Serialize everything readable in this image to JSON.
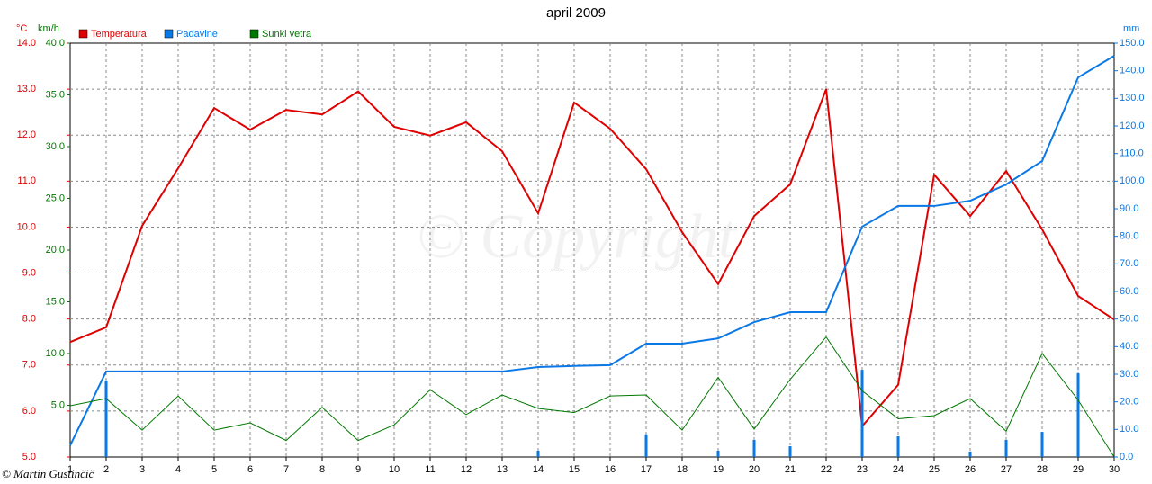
{
  "chart_data": {
    "type": "line",
    "title": "april 2009",
    "watermark": "© Copyright",
    "footer": "© Martin Gustinčič",
    "ylabel": "°C",
    "y3label": "km/h",
    "y2label": "mm",
    "grid": true,
    "x": [
      1,
      2,
      3,
      4,
      5,
      6,
      7,
      8,
      9,
      10,
      11,
      12,
      13,
      14,
      15,
      16,
      17,
      18,
      19,
      20,
      21,
      22,
      23,
      24,
      25,
      26,
      27,
      28,
      29,
      30
    ],
    "xlim": [
      1,
      30
    ],
    "ylim": [
      5,
      14
    ],
    "yticks": [
      {
        "value": 5,
        "label": "5.0"
      },
      {
        "value": 6,
        "label": "6.0"
      },
      {
        "value": 7,
        "label": "7.0"
      },
      {
        "value": 8,
        "label": "8.0"
      },
      {
        "value": 9,
        "label": "9.0"
      },
      {
        "value": 10,
        "label": "10.0"
      },
      {
        "value": 11,
        "label": "11.0"
      },
      {
        "value": 12,
        "label": "12.0"
      },
      {
        "value": 13,
        "label": "13.0"
      },
      {
        "value": 14,
        "label": "14.0"
      }
    ],
    "y3lim": [
      0,
      40
    ],
    "y3ticks": [
      {
        "value": 5,
        "label": "5.0"
      },
      {
        "value": 10,
        "label": "10.0"
      },
      {
        "value": 15,
        "label": "15.0"
      },
      {
        "value": 20,
        "label": "20.0"
      },
      {
        "value": 25,
        "label": "25.0"
      },
      {
        "value": 30,
        "label": "30.0"
      },
      {
        "value": 35,
        "label": "35.0"
      },
      {
        "value": 40,
        "label": "40.0"
      }
    ],
    "y2lim": [
      0,
      150
    ],
    "y2ticks": [
      {
        "value": 0,
        "label": "0.0"
      },
      {
        "value": 10,
        "label": "10.0"
      },
      {
        "value": 20,
        "label": "20.0"
      },
      {
        "value": 30,
        "label": "30.0"
      },
      {
        "value": 40,
        "label": "40.0"
      },
      {
        "value": 50,
        "label": "50.0"
      },
      {
        "value": 60,
        "label": "60.0"
      },
      {
        "value": 70,
        "label": "70.0"
      },
      {
        "value": 80,
        "label": "80.0"
      },
      {
        "value": 90,
        "label": "90.0"
      },
      {
        "value": 100,
        "label": "100.0"
      },
      {
        "value": 110,
        "label": "110.0"
      },
      {
        "value": 120,
        "label": "120.0"
      },
      {
        "value": 130,
        "label": "130.0"
      },
      {
        "value": 140,
        "label": "140.0"
      },
      {
        "value": 150,
        "label": "150.0"
      }
    ],
    "series": [
      {
        "name": "Temperatura",
        "color": "#e00000",
        "axis": "y",
        "values": [
          7.5,
          7.82,
          10.03,
          11.28,
          12.59,
          12.12,
          12.55,
          12.45,
          12.95,
          12.18,
          11.99,
          12.28,
          11.65,
          10.3,
          12.71,
          12.14,
          11.26,
          9.89,
          8.76,
          10.24,
          10.93,
          13.0,
          5.67,
          6.57,
          11.14,
          10.24,
          11.22,
          9.95,
          8.5,
          7.99
        ]
      },
      {
        "name": "Padavine",
        "color": "#0a78e6",
        "axis": "y2",
        "values": [
          4.2,
          31,
          31,
          31,
          31,
          31,
          31,
          31,
          31,
          31,
          31,
          31,
          31,
          32.6,
          33,
          33.3,
          41.1,
          41.1,
          43,
          48.9,
          52.5,
          52.5,
          83.5,
          91,
          91,
          92.9,
          98.8,
          107.3,
          137.6,
          145.4
        ],
        "bar_values": [
          0,
          27.7,
          0,
          0,
          0,
          0,
          0,
          0,
          0,
          0,
          0,
          0,
          0,
          2.3,
          0,
          0,
          8.2,
          0,
          2.3,
          6.2,
          3.9,
          0,
          31.6,
          7.5,
          0,
          2,
          6.2,
          9.1,
          30.3,
          0
        ]
      },
      {
        "name": "Sunki vetra",
        "color": "#007800",
        "axis": "y3",
        "values": [
          4.96,
          5.65,
          2.6,
          5.9,
          2.6,
          3.3,
          1.6,
          4.8,
          1.6,
          3.1,
          6.5,
          4.1,
          6.0,
          4.7,
          4.3,
          5.9,
          6.0,
          2.6,
          7.7,
          2.7,
          7.5,
          11.6,
          6.4,
          3.7,
          4.0,
          5.65,
          2.5,
          10.0,
          5.5,
          0
        ]
      }
    ]
  }
}
